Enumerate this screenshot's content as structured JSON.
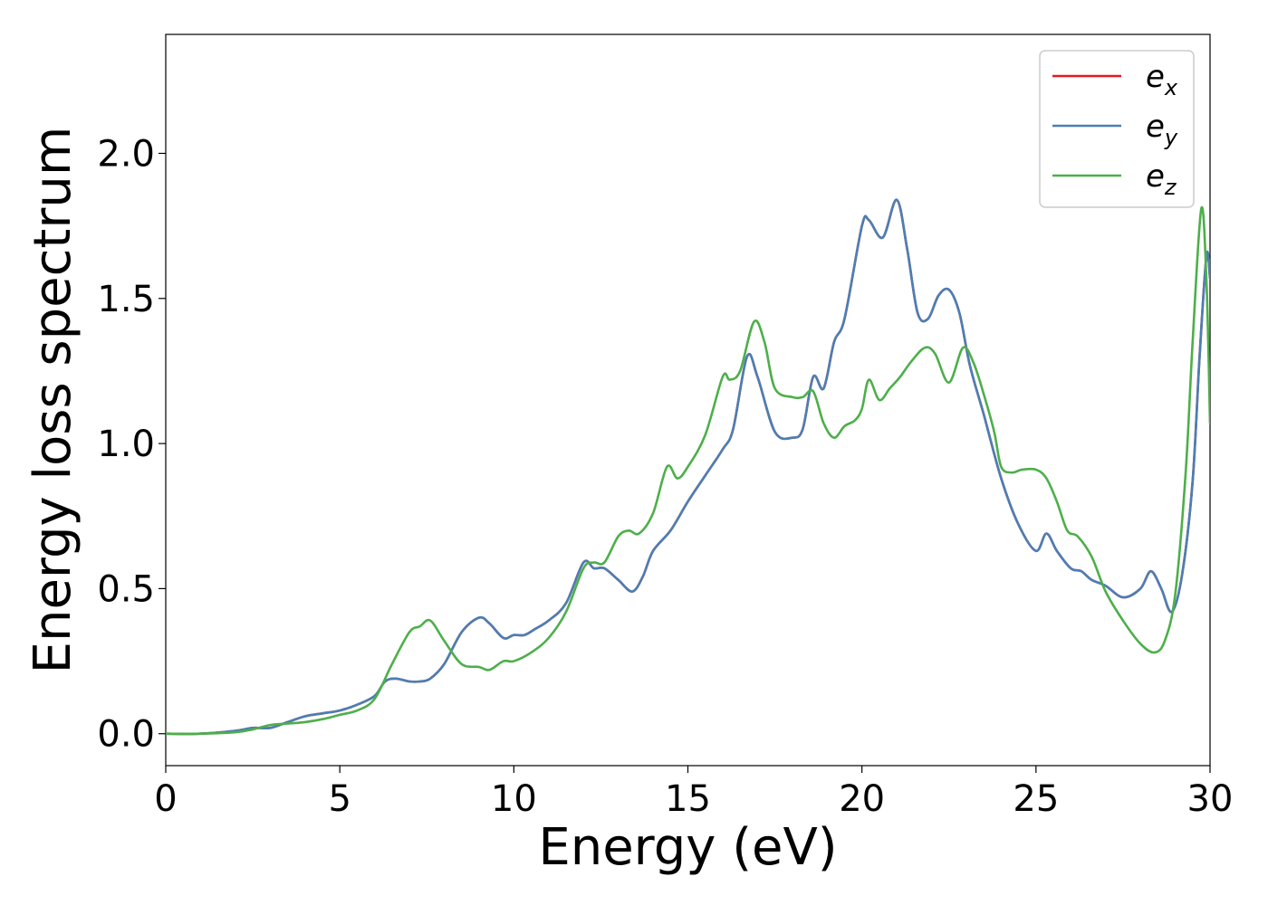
{
  "chart_data": {
    "type": "line",
    "xlabel": "Energy (eV)",
    "ylabel": "Energy loss spectrum",
    "xlim": [
      0,
      30
    ],
    "ylim": [
      -0.11,
      2.41
    ],
    "x_ticks": [
      "0",
      "5",
      "10",
      "15",
      "20",
      "25",
      "30"
    ],
    "y_ticks": [
      "0.0",
      "0.5",
      "1.0",
      "1.5",
      "2.0"
    ],
    "grid": false,
    "legend_position": "top-right",
    "series": [
      {
        "name": "e_x",
        "legend_base": "e",
        "legend_sub": "x",
        "color": "#e41a1c",
        "x": [
          0,
          1,
          2,
          2.5,
          3,
          3.5,
          4,
          4.5,
          5,
          5.5,
          6,
          6.3,
          6.6,
          7,
          7.3,
          7.6,
          8,
          8.5,
          9,
          9.3,
          9.7,
          10,
          10.3,
          10.6,
          11,
          11.5,
          12,
          12.3,
          12.6,
          13,
          13.4,
          13.7,
          14,
          14.5,
          15,
          15.5,
          16,
          16.3,
          16.7,
          17,
          17.5,
          18,
          18.3,
          18.6,
          18.9,
          19.2,
          19.5,
          20,
          20.2,
          20.6,
          21,
          21.3,
          21.6,
          21.9,
          22.2,
          22.5,
          22.8,
          23.1,
          23.5,
          24,
          24.5,
          25,
          25.3,
          25.6,
          26,
          26.3,
          26.6,
          27,
          27.5,
          28,
          28.3,
          28.6,
          28.9,
          29.2,
          29.5,
          29.7,
          29.9,
          30
        ],
        "y": [
          0,
          0,
          0.01,
          0.02,
          0.02,
          0.04,
          0.06,
          0.07,
          0.08,
          0.1,
          0.13,
          0.18,
          0.19,
          0.18,
          0.18,
          0.19,
          0.24,
          0.35,
          0.4,
          0.38,
          0.33,
          0.34,
          0.34,
          0.36,
          0.39,
          0.45,
          0.59,
          0.57,
          0.57,
          0.53,
          0.49,
          0.54,
          0.63,
          0.7,
          0.8,
          0.89,
          0.98,
          1.05,
          1.3,
          1.23,
          1.04,
          1.02,
          1.05,
          1.23,
          1.19,
          1.35,
          1.43,
          1.75,
          1.77,
          1.71,
          1.84,
          1.67,
          1.45,
          1.43,
          1.51,
          1.53,
          1.45,
          1.27,
          1.1,
          0.88,
          0.72,
          0.63,
          0.69,
          0.63,
          0.57,
          0.56,
          0.53,
          0.51,
          0.47,
          0.5,
          0.56,
          0.5,
          0.42,
          0.55,
          0.87,
          1.3,
          1.65,
          1.57
        ]
      },
      {
        "name": "e_y",
        "legend_base": "e",
        "legend_sub": "y",
        "color": "#4a7fb5",
        "x": [
          0,
          1,
          2,
          2.5,
          3,
          3.5,
          4,
          4.5,
          5,
          5.5,
          6,
          6.3,
          6.6,
          7,
          7.3,
          7.6,
          8,
          8.5,
          9,
          9.3,
          9.7,
          10,
          10.3,
          10.6,
          11,
          11.5,
          12,
          12.3,
          12.6,
          13,
          13.4,
          13.7,
          14,
          14.5,
          15,
          15.5,
          16,
          16.3,
          16.7,
          17,
          17.5,
          18,
          18.3,
          18.6,
          18.9,
          19.2,
          19.5,
          20,
          20.2,
          20.6,
          21,
          21.3,
          21.6,
          21.9,
          22.2,
          22.5,
          22.8,
          23.1,
          23.5,
          24,
          24.5,
          25,
          25.3,
          25.6,
          26,
          26.3,
          26.6,
          27,
          27.5,
          28,
          28.3,
          28.6,
          28.9,
          29.2,
          29.5,
          29.7,
          29.9,
          30
        ],
        "y": [
          0,
          0,
          0.01,
          0.02,
          0.02,
          0.04,
          0.06,
          0.07,
          0.08,
          0.1,
          0.13,
          0.18,
          0.19,
          0.18,
          0.18,
          0.19,
          0.24,
          0.35,
          0.4,
          0.38,
          0.33,
          0.34,
          0.34,
          0.36,
          0.39,
          0.45,
          0.59,
          0.57,
          0.57,
          0.53,
          0.49,
          0.54,
          0.63,
          0.7,
          0.8,
          0.89,
          0.98,
          1.05,
          1.3,
          1.23,
          1.04,
          1.02,
          1.05,
          1.23,
          1.19,
          1.35,
          1.43,
          1.75,
          1.77,
          1.71,
          1.84,
          1.67,
          1.45,
          1.43,
          1.51,
          1.53,
          1.45,
          1.27,
          1.1,
          0.88,
          0.72,
          0.63,
          0.69,
          0.63,
          0.57,
          0.56,
          0.53,
          0.51,
          0.47,
          0.5,
          0.56,
          0.5,
          0.42,
          0.55,
          0.87,
          1.3,
          1.65,
          1.57
        ]
      },
      {
        "name": "e_z",
        "legend_base": "e",
        "legend_sub": "z",
        "color": "#4daf4a",
        "x": [
          0,
          1,
          2,
          2.5,
          3,
          3.5,
          4,
          4.5,
          5,
          5.5,
          6,
          6.5,
          7,
          7.3,
          7.6,
          8,
          8.5,
          9,
          9.3,
          9.7,
          10,
          10.5,
          11,
          11.5,
          12,
          12.3,
          12.6,
          13,
          13.3,
          13.6,
          14,
          14.4,
          14.7,
          15,
          15.5,
          16,
          16.2,
          16.5,
          16.9,
          17.2,
          17.5,
          18,
          18.3,
          18.6,
          18.9,
          19.2,
          19.5,
          19.8,
          20,
          20.2,
          20.5,
          20.8,
          21.1,
          21.4,
          21.8,
          22.1,
          22.5,
          22.9,
          23.2,
          23.5,
          23.8,
          24,
          24.3,
          24.6,
          25,
          25.3,
          25.6,
          25.9,
          26.2,
          26.6,
          27,
          27.5,
          28,
          28.4,
          28.7,
          29,
          29.3,
          29.5,
          29.75,
          29.9,
          30
        ],
        "y": [
          0,
          0,
          0.005,
          0.015,
          0.03,
          0.035,
          0.04,
          0.05,
          0.065,
          0.08,
          0.12,
          0.24,
          0.35,
          0.37,
          0.39,
          0.32,
          0.24,
          0.23,
          0.22,
          0.25,
          0.25,
          0.28,
          0.33,
          0.42,
          0.57,
          0.59,
          0.59,
          0.68,
          0.7,
          0.69,
          0.76,
          0.92,
          0.88,
          0.92,
          1.03,
          1.23,
          1.22,
          1.25,
          1.42,
          1.35,
          1.19,
          1.16,
          1.16,
          1.18,
          1.07,
          1.02,
          1.06,
          1.08,
          1.12,
          1.22,
          1.15,
          1.19,
          1.23,
          1.28,
          1.33,
          1.31,
          1.21,
          1.33,
          1.28,
          1.17,
          1.04,
          0.92,
          0.9,
          0.91,
          0.91,
          0.88,
          0.8,
          0.7,
          0.68,
          0.61,
          0.49,
          0.39,
          0.31,
          0.28,
          0.32,
          0.48,
          0.9,
          1.35,
          1.81,
          1.55,
          1.07
        ]
      }
    ]
  }
}
